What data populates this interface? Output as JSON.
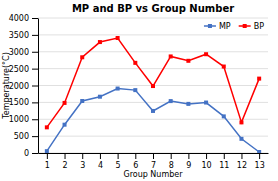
{
  "chart_data": {
    "type": "line",
    "title": "MP and BP vs Group Number",
    "xlabel": "Group Number",
    "ylabel": "Temperature(°C)",
    "x": [
      1,
      2,
      3,
      4,
      5,
      6,
      7,
      8,
      9,
      10,
      11,
      12,
      13
    ],
    "series": [
      {
        "name": "MP",
        "color": "#4472C4",
        "values": [
          54,
          839,
          1541,
          1668,
          1910,
          1863,
          1246,
          1538,
          1455,
          1495,
          1085,
          420,
          30
        ]
      },
      {
        "name": "BP",
        "color": "#FF0000",
        "values": [
          760,
          1484,
          2836,
          3287,
          3407,
          2671,
          1984,
          2861,
          2732,
          2927,
          2562,
          907,
          2204
        ]
      }
    ],
    "xlim": [
      0.5,
      13.5
    ],
    "xticks": [
      1,
      2,
      3,
      4,
      5,
      6,
      7,
      8,
      9,
      10,
      11,
      12,
      13
    ],
    "ylim": [
      0,
      4000
    ],
    "yticks": [
      0,
      500,
      1000,
      1500,
      2000,
      2500,
      3000,
      3500,
      4000
    ],
    "grid": true,
    "legend": "upper right",
    "marker": "square"
  }
}
